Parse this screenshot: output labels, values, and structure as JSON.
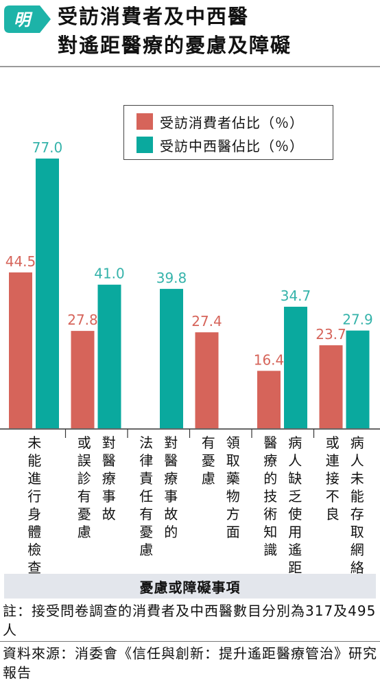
{
  "logo": {
    "text": "明"
  },
  "title": {
    "line1": "受訪消費者及中西醫",
    "line2": "對遙距醫療的憂慮及障礙"
  },
  "colors": {
    "consumer": "#d6645a",
    "practitioner": "#0aa99e",
    "axis_title_bg": "#e3e6ec",
    "logo_bg": "#1db3a8"
  },
  "chart_data": {
    "type": "bar",
    "title": "受訪消費者及中西醫對遙距醫療的憂慮及障礙",
    "xlabel": "憂慮或障礙事項",
    "ylabel": "",
    "ylim": [
      0,
      80
    ],
    "grid": false,
    "legend_position": "top-right",
    "categories": [
      "未能進行身體檢查",
      "對醫療事故或誤診有憂慮",
      "對醫療事故的法律責任有憂慮",
      "領取藥物方面有憂慮",
      "病人缺乏使用遙距醫療的技術知識",
      "病人未能存取網絡或連接不良"
    ],
    "category_lines": [
      [
        "未能進行身體檢查"
      ],
      [
        "或誤診有憂慮",
        "對醫療事故"
      ],
      [
        "法律責任有憂慮",
        "對醫療事故的"
      ],
      [
        "有憂慮",
        "領取藥物方面"
      ],
      [
        "醫療的技術知識",
        "病人缺乏使用遙距"
      ],
      [
        "或連接不良",
        "病人未能存取網絡"
      ]
    ],
    "series": [
      {
        "name": "受訪消費者佔比（％）",
        "values": [
          44.5,
          27.8,
          null,
          27.4,
          16.4,
          23.7
        ]
      },
      {
        "name": "受訪中西醫佔比（％）",
        "values": [
          77.0,
          41.0,
          39.8,
          null,
          34.7,
          27.9
        ]
      }
    ],
    "value_labels": [
      [
        "44.5",
        "27.8",
        "",
        "27.4",
        "16.4",
        "23.7"
      ],
      [
        "77.0",
        "41.0",
        "39.8",
        "",
        "34.7",
        "27.9"
      ]
    ]
  },
  "notes": {
    "note": "註：接受問卷調查的消費者及中西醫數目分別為317及495人",
    "source": "資料來源：消委會《信任與創新：提升遙距醫療管治》研究報告"
  }
}
